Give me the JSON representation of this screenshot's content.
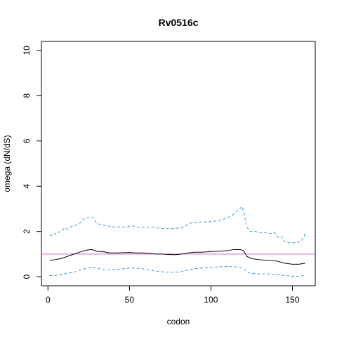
{
  "chart_data": {
    "type": "line",
    "title": "Rv0516c",
    "xlabel": "codon",
    "ylabel": "omega (dN/dS)",
    "xlim": [
      -4,
      164
    ],
    "ylim": [
      -0.4,
      10.4
    ],
    "xticks": [
      0,
      50,
      100,
      150
    ],
    "yticks": [
      0,
      2,
      4,
      6,
      8,
      10
    ],
    "grid": false,
    "reference_line": {
      "y": 1,
      "color": "#cc66cc"
    },
    "series": [
      {
        "role": "upper-bound",
        "style": "dashed",
        "color": "#3399dd",
        "points": [
          [
            1,
            1.85
          ],
          [
            3,
            1.8
          ],
          [
            5,
            1.95
          ],
          [
            8,
            1.98
          ],
          [
            10,
            2.15
          ],
          [
            12,
            2.1
          ],
          [
            14,
            2.2
          ],
          [
            16,
            2.25
          ],
          [
            18,
            2.3
          ],
          [
            20,
            2.4
          ],
          [
            22,
            2.55
          ],
          [
            24,
            2.6
          ],
          [
            26,
            2.62
          ],
          [
            28,
            2.6
          ],
          [
            30,
            2.35
          ],
          [
            33,
            2.3
          ],
          [
            36,
            2.25
          ],
          [
            40,
            2.2
          ],
          [
            44,
            2.2
          ],
          [
            48,
            2.2
          ],
          [
            52,
            2.25
          ],
          [
            56,
            2.18
          ],
          [
            60,
            2.18
          ],
          [
            64,
            2.2
          ],
          [
            68,
            2.15
          ],
          [
            72,
            2.12
          ],
          [
            76,
            2.12
          ],
          [
            80,
            2.15
          ],
          [
            84,
            2.2
          ],
          [
            86,
            2.35
          ],
          [
            90,
            2.4
          ],
          [
            94,
            2.42
          ],
          [
            98,
            2.42
          ],
          [
            102,
            2.45
          ],
          [
            106,
            2.5
          ],
          [
            110,
            2.6
          ],
          [
            113,
            2.7
          ],
          [
            115,
            2.85
          ],
          [
            117,
            2.95
          ],
          [
            119,
            3.1
          ],
          [
            120,
            2.9
          ],
          [
            122,
            2.2
          ],
          [
            124,
            2.0
          ],
          [
            127,
            2.0
          ],
          [
            130,
            1.95
          ],
          [
            133,
            1.95
          ],
          [
            136,
            1.9
          ],
          [
            139,
            1.95
          ],
          [
            141,
            1.75
          ],
          [
            143,
            1.8
          ],
          [
            145,
            1.55
          ],
          [
            148,
            1.5
          ],
          [
            152,
            1.5
          ],
          [
            155,
            1.55
          ],
          [
            157,
            1.75
          ],
          [
            158,
            1.95
          ]
        ]
      },
      {
        "role": "estimate",
        "style": "solid",
        "color": "#000000",
        "points": [
          [
            1,
            0.72
          ],
          [
            4,
            0.75
          ],
          [
            8,
            0.8
          ],
          [
            12,
            0.9
          ],
          [
            16,
            1.0
          ],
          [
            20,
            1.1
          ],
          [
            24,
            1.18
          ],
          [
            27,
            1.2
          ],
          [
            30,
            1.12
          ],
          [
            34,
            1.1
          ],
          [
            38,
            1.05
          ],
          [
            42,
            1.05
          ],
          [
            46,
            1.06
          ],
          [
            50,
            1.07
          ],
          [
            54,
            1.05
          ],
          [
            58,
            1.05
          ],
          [
            62,
            1.03
          ],
          [
            66,
            1.0
          ],
          [
            70,
            1.0
          ],
          [
            74,
            0.98
          ],
          [
            78,
            0.97
          ],
          [
            82,
            1.0
          ],
          [
            86,
            1.05
          ],
          [
            90,
            1.08
          ],
          [
            94,
            1.08
          ],
          [
            98,
            1.1
          ],
          [
            102,
            1.12
          ],
          [
            106,
            1.13
          ],
          [
            110,
            1.15
          ],
          [
            114,
            1.2
          ],
          [
            118,
            1.2
          ],
          [
            120,
            1.15
          ],
          [
            122,
            0.9
          ],
          [
            125,
            0.8
          ],
          [
            130,
            0.75
          ],
          [
            135,
            0.72
          ],
          [
            140,
            0.7
          ],
          [
            145,
            0.6
          ],
          [
            150,
            0.55
          ],
          [
            154,
            0.55
          ],
          [
            158,
            0.6
          ]
        ]
      },
      {
        "role": "lower-bound",
        "style": "dashed",
        "color": "#3399dd",
        "points": [
          [
            1,
            0.05
          ],
          [
            4,
            0.05
          ],
          [
            8,
            0.1
          ],
          [
            12,
            0.15
          ],
          [
            16,
            0.2
          ],
          [
            20,
            0.3
          ],
          [
            24,
            0.38
          ],
          [
            27,
            0.42
          ],
          [
            30,
            0.38
          ],
          [
            34,
            0.32
          ],
          [
            38,
            0.3
          ],
          [
            42,
            0.32
          ],
          [
            46,
            0.35
          ],
          [
            50,
            0.38
          ],
          [
            54,
            0.38
          ],
          [
            58,
            0.35
          ],
          [
            62,
            0.3
          ],
          [
            66,
            0.25
          ],
          [
            70,
            0.22
          ],
          [
            74,
            0.2
          ],
          [
            78,
            0.2
          ],
          [
            82,
            0.22
          ],
          [
            86,
            0.3
          ],
          [
            90,
            0.35
          ],
          [
            94,
            0.38
          ],
          [
            98,
            0.4
          ],
          [
            102,
            0.42
          ],
          [
            106,
            0.44
          ],
          [
            110,
            0.45
          ],
          [
            114,
            0.45
          ],
          [
            118,
            0.4
          ],
          [
            121,
            0.3
          ],
          [
            124,
            0.15
          ],
          [
            130,
            0.12
          ],
          [
            135,
            0.12
          ],
          [
            140,
            0.1
          ],
          [
            145,
            0.05
          ],
          [
            150,
            0.02
          ],
          [
            154,
            0.02
          ],
          [
            158,
            0.05
          ]
        ]
      }
    ]
  }
}
